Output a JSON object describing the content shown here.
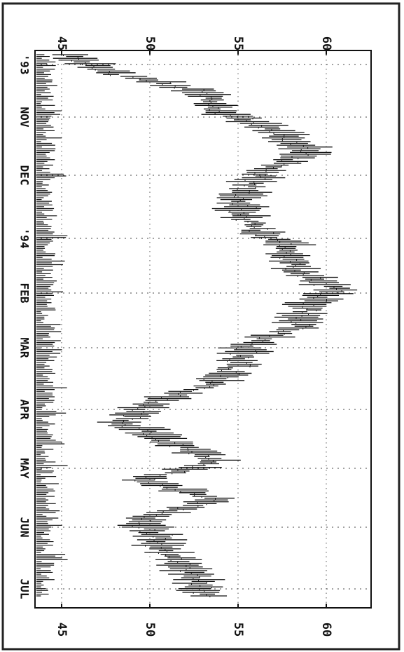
{
  "chart_data": {
    "type": "bar",
    "subtype": "ohlc-daily-with-volume",
    "orientation": "rotated-90-clockwise",
    "title": "",
    "xlabel": "",
    "ylabel": "",
    "x_tick_labels": [
      "'93",
      "NOV",
      "DEC",
      "'94",
      "FEB",
      "MAR",
      "APR",
      "MAY",
      "JUN",
      "JUL"
    ],
    "y_tick_labels_top": [
      "45",
      "50",
      "55",
      "60"
    ],
    "y_tick_labels_bottom": [
      "45",
      "50",
      "55",
      "60"
    ],
    "y_ticks": [
      45,
      50,
      55,
      60
    ],
    "ylim": [
      44.2,
      62.5
    ],
    "grid": "dotted",
    "volume_panel": true,
    "series": [
      {
        "name": "",
        "points": [
          [
            "Oct 1993",
            45.5
          ],
          [
            "Oct 1993",
            48.0
          ],
          [
            "Oct 1993",
            53.5
          ],
          [
            "Nov 1993",
            54.0
          ],
          [
            "Nov 1993",
            57.5
          ],
          [
            "Nov 1993",
            59.0
          ],
          [
            "Dec 1993",
            56.5
          ],
          [
            "Dec 1993",
            55.5
          ],
          [
            "Dec 1993",
            55.0
          ],
          [
            "Jan 1994",
            56.0
          ],
          [
            "Jan 1994",
            58.0
          ],
          [
            "Jan 1994",
            58.0
          ],
          [
            "Feb 1994",
            60.5
          ],
          [
            "Feb 1994",
            59.0
          ],
          [
            "Feb 1994",
            58.5
          ],
          [
            "Mar 1994",
            55.5
          ],
          [
            "Mar 1994",
            55.0
          ],
          [
            "Mar 1994",
            53.5
          ],
          [
            "Apr 1994",
            50.0
          ],
          [
            "Apr 1994",
            48.5
          ],
          [
            "Apr 1994",
            51.0
          ],
          [
            "May 1994",
            54.0
          ],
          [
            "May 1994",
            49.5
          ],
          [
            "May 1994",
            54.0
          ],
          [
            "Jun 1994",
            49.5
          ],
          [
            "Jun 1994",
            50.5
          ],
          [
            "Jun 1994",
            51.5
          ],
          [
            "Jul 1994",
            52.5
          ],
          [
            "Jul 1994",
            53.0
          ]
        ]
      }
    ]
  }
}
